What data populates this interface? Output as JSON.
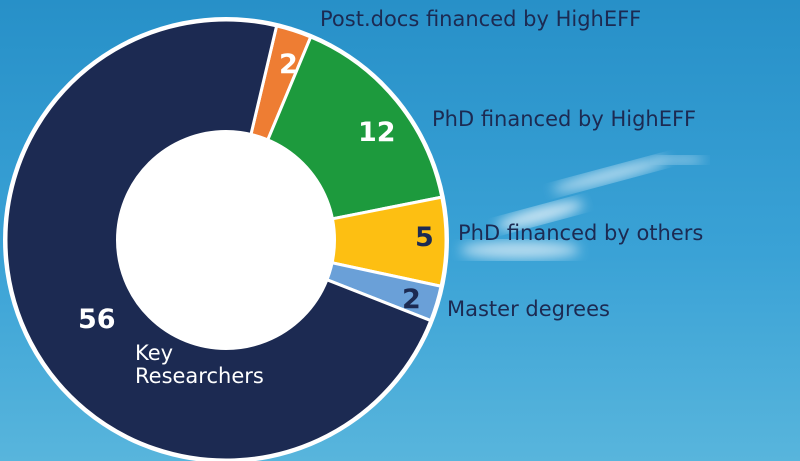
{
  "chart_data": {
    "type": "pie",
    "categories": [
      "Post.docs  financed by HighEFF",
      "PhD  financed by HighEFF",
      "PhD  financed by others",
      "Master degrees",
      "Key Researchers"
    ],
    "values": [
      2,
      12,
      5,
      2,
      56
    ],
    "colors": [
      "#ee7d33",
      "#1d9a3d",
      "#fdbf12",
      "#6aa0d8",
      "#1c2a52"
    ]
  }
}
